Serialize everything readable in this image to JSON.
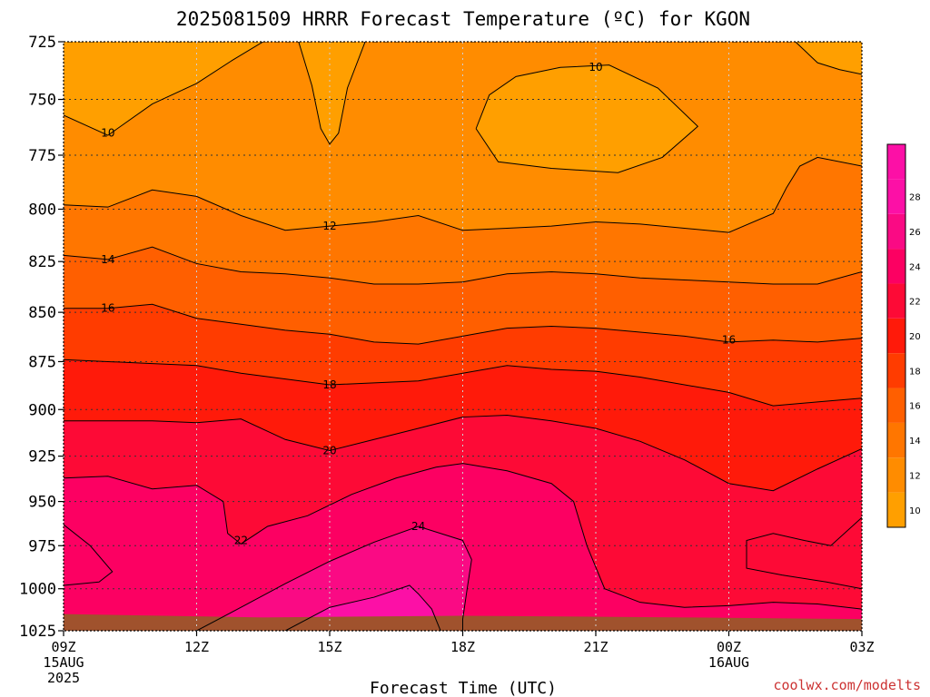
{
  "chart_data": {
    "type": "heatmap",
    "title": "2025081509 HRRR Forecast Temperature (ºC) for KGON",
    "xlabel": "Forecast Time (UTC)",
    "ylabel": "",
    "credit": "coolwx.com/modelts",
    "x_hours": [
      0,
      3,
      6,
      9,
      12,
      15,
      18
    ],
    "x_ticks": [
      {
        "hour": 0,
        "label": "09Z",
        "date1": "15AUG",
        "date2": "2025"
      },
      {
        "hour": 3,
        "label": "12Z",
        "date1": "",
        "date2": ""
      },
      {
        "hour": 6,
        "label": "15Z",
        "date1": "",
        "date2": ""
      },
      {
        "hour": 9,
        "label": "18Z",
        "date1": "",
        "date2": ""
      },
      {
        "hour": 12,
        "label": "21Z",
        "date1": "",
        "date2": ""
      },
      {
        "hour": 15,
        "label": "00Z",
        "date1": "16AUG",
        "date2": ""
      },
      {
        "hour": 18,
        "label": "03Z",
        "date1": "",
        "date2": ""
      }
    ],
    "y_levels_hpa": [
      725,
      750,
      775,
      800,
      825,
      850,
      875,
      900,
      925,
      950,
      975,
      1000,
      1025
    ],
    "y_scale": "log-pressure",
    "ylim": [
      1025,
      725
    ],
    "grid": "dotted",
    "contour_interval": 2,
    "contours": [
      {
        "value": 10,
        "labels": [
          {
            "hour": 1.0,
            "p": 765
          },
          {
            "hour": 12.0,
            "p": 736
          }
        ],
        "paths": [
          [
            [
              0,
              757
            ],
            [
              1.0,
              766
            ],
            [
              2.0,
              752
            ],
            [
              3.0,
              743
            ],
            [
              3.8,
              733
            ],
            [
              4.5,
              725
            ]
          ],
          [
            [
              5.3,
              725
            ],
            [
              5.6,
              744
            ],
            [
              5.8,
              763
            ],
            [
              6.0,
              770
            ],
            [
              6.2,
              765
            ],
            [
              6.4,
              745
            ],
            [
              6.8,
              725
            ]
          ],
          [
            [
              9.3,
              763
            ],
            [
              9.6,
              748
            ],
            [
              10.2,
              740
            ],
            [
              11.2,
              736
            ],
            [
              12.3,
              735
            ],
            [
              13.4,
              745
            ],
            [
              14.3,
              762
            ],
            [
              13.5,
              776
            ],
            [
              12.5,
              783
            ],
            [
              11.0,
              781
            ],
            [
              9.8,
              778
            ],
            [
              9.3,
              763
            ]
          ],
          [
            [
              16.5,
              725
            ],
            [
              17.0,
              734
            ],
            [
              17.5,
              737
            ],
            [
              18,
              739
            ]
          ]
        ]
      },
      {
        "value": 12,
        "labels": [
          {
            "hour": 6.0,
            "p": 808
          }
        ],
        "paths": [
          [
            [
              0,
              798
            ],
            [
              1.0,
              799
            ],
            [
              2.0,
              791
            ],
            [
              3.0,
              794
            ],
            [
              4.0,
              803
            ],
            [
              5.0,
              810
            ],
            [
              6.0,
              808
            ],
            [
              7.0,
              806
            ],
            [
              8.0,
              803
            ],
            [
              9.0,
              810
            ],
            [
              10.0,
              809
            ],
            [
              11.0,
              808
            ],
            [
              12.0,
              806
            ],
            [
              13.0,
              807
            ],
            [
              14.0,
              809
            ],
            [
              15.0,
              811
            ],
            [
              16.0,
              802
            ],
            [
              16.3,
              790
            ],
            [
              16.6,
              780
            ],
            [
              17.0,
              776
            ],
            [
              18,
              780
            ]
          ]
        ]
      },
      {
        "value": 14,
        "labels": [
          {
            "hour": 1.0,
            "p": 824
          }
        ],
        "paths": [
          [
            [
              0,
              822
            ],
            [
              1.0,
              824
            ],
            [
              2.0,
              818
            ],
            [
              3.0,
              826
            ],
            [
              4.0,
              830
            ],
            [
              5.0,
              831
            ],
            [
              6.0,
              833
            ],
            [
              7.0,
              836
            ],
            [
              8.0,
              836
            ],
            [
              9.0,
              835
            ],
            [
              10.0,
              831
            ],
            [
              11.0,
              830
            ],
            [
              12.0,
              831
            ],
            [
              13.0,
              833
            ],
            [
              14.0,
              834
            ],
            [
              15.0,
              835
            ],
            [
              16.0,
              836
            ],
            [
              17.0,
              836
            ],
            [
              18,
              830
            ]
          ]
        ]
      },
      {
        "value": 16,
        "labels": [
          {
            "hour": 1.0,
            "p": 848
          },
          {
            "hour": 15.0,
            "p": 864
          }
        ],
        "paths": [
          [
            [
              0,
              848
            ],
            [
              1.0,
              848
            ],
            [
              2.0,
              846
            ],
            [
              3.0,
              853
            ],
            [
              4.0,
              856
            ],
            [
              5.0,
              859
            ],
            [
              6.0,
              861
            ],
            [
              7.0,
              865
            ],
            [
              8.0,
              866
            ],
            [
              9.0,
              862
            ],
            [
              10.0,
              858
            ],
            [
              11.0,
              857
            ],
            [
              12.0,
              858
            ],
            [
              13.0,
              860
            ],
            [
              14.0,
              862
            ],
            [
              15.0,
              865
            ],
            [
              16.0,
              864
            ],
            [
              17.0,
              865
            ],
            [
              18,
              863
            ]
          ]
        ]
      },
      {
        "value": 18,
        "labels": [
          {
            "hour": 6.0,
            "p": 887
          }
        ],
        "paths": [
          [
            [
              0,
              874
            ],
            [
              1.0,
              875
            ],
            [
              2.0,
              876
            ],
            [
              3.0,
              877
            ],
            [
              4.0,
              881
            ],
            [
              5.0,
              884
            ],
            [
              6.0,
              887
            ],
            [
              7.0,
              886
            ],
            [
              8.0,
              885
            ],
            [
              9.0,
              881
            ],
            [
              10.0,
              877
            ],
            [
              11.0,
              879
            ],
            [
              12.0,
              880
            ],
            [
              13.0,
              883
            ],
            [
              14.0,
              887
            ],
            [
              15.0,
              891
            ],
            [
              16.0,
              898
            ],
            [
              17.0,
              896
            ],
            [
              18,
              894
            ]
          ]
        ]
      },
      {
        "value": 20,
        "labels": [
          {
            "hour": 6.0,
            "p": 922
          }
        ],
        "paths": [
          [
            [
              0,
              906
            ],
            [
              1.0,
              906
            ],
            [
              2.0,
              906
            ],
            [
              3.0,
              907
            ],
            [
              4.0,
              905
            ],
            [
              5.0,
              916
            ],
            [
              6.0,
              922
            ],
            [
              7.0,
              916
            ],
            [
              8.0,
              910
            ],
            [
              9.0,
              904
            ],
            [
              10.0,
              903
            ],
            [
              11.0,
              906
            ],
            [
              12.0,
              910
            ],
            [
              13.0,
              917
            ],
            [
              14.0,
              927
            ],
            [
              15.0,
              940
            ],
            [
              16.0,
              944
            ],
            [
              17.0,
              932
            ],
            [
              18,
              921
            ]
          ]
        ]
      },
      {
        "value": 22,
        "labels": [
          {
            "hour": 4.0,
            "p": 972
          }
        ],
        "paths": [
          [
            [
              0,
              937
            ],
            [
              1.0,
              936
            ],
            [
              2.0,
              943
            ],
            [
              3.0,
              941
            ],
            [
              3.6,
              950
            ],
            [
              3.7,
              968
            ],
            [
              4.0,
              974
            ],
            [
              4.6,
              964
            ],
            [
              5.5,
              958
            ],
            [
              6.5,
              946
            ],
            [
              7.5,
              937
            ],
            [
              8.4,
              931
            ],
            [
              9.0,
              929
            ],
            [
              10.0,
              933
            ],
            [
              11.0,
              940
            ],
            [
              11.5,
              950
            ],
            [
              11.8,
              975
            ],
            [
              12.2,
              1000
            ],
            [
              13.0,
              1008
            ],
            [
              14.0,
              1011
            ],
            [
              15.0,
              1010
            ],
            [
              16.0,
              1008
            ],
            [
              17.0,
              1009
            ],
            [
              18,
              1012
            ]
          ],
          [
            [
              0,
              963
            ],
            [
              0.6,
              975
            ],
            [
              1.1,
              990
            ],
            [
              0.8,
              996
            ],
            [
              0,
              998
            ]
          ],
          [
            [
              18,
              959
            ],
            [
              17.3,
              975
            ],
            [
              16.7,
              972
            ],
            [
              16.0,
              968
            ],
            [
              15.4,
              972
            ],
            [
              15.4,
              988
            ],
            [
              16.2,
              992
            ],
            [
              17.2,
              996
            ],
            [
              18,
              1000
            ]
          ]
        ]
      },
      {
        "value": 24,
        "labels": [
          {
            "hour": 8.0,
            "p": 964
          }
        ],
        "paths": [
          [
            [
              3.0,
              1025
            ],
            [
              4.0,
              1011
            ],
            [
              5.0,
              997
            ],
            [
              6.0,
              984
            ],
            [
              7.0,
              973
            ],
            [
              8.0,
              964
            ],
            [
              9.0,
              972
            ],
            [
              9.2,
              983
            ],
            [
              9.1,
              1000
            ],
            [
              9.0,
              1018
            ],
            [
              9.0,
              1025
            ]
          ]
        ]
      },
      {
        "value": 26,
        "labels": [],
        "paths": [
          [
            [
              5.0,
              1025
            ],
            [
              6.0,
              1011
            ],
            [
              7.0,
              1005
            ],
            [
              7.8,
              998
            ],
            [
              8.0,
              1003
            ],
            [
              8.3,
              1012
            ],
            [
              8.5,
              1025
            ]
          ]
        ]
      }
    ]
  }
}
